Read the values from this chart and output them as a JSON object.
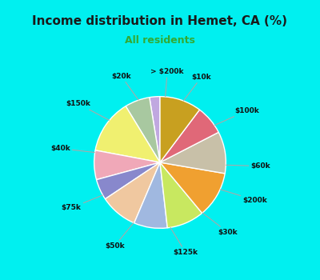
{
  "title": "Income distribution in Hemet, CA (%)",
  "subtitle": "All residents",
  "title_color": "#1a1a1a",
  "subtitle_color": "#33aa33",
  "bg_cyan": "#00f0f0",
  "bg_chart": "#e0f0e8",
  "labels": [
    "> $200k",
    "$10k",
    "$100k",
    "$60k",
    "$200k",
    "$30k",
    "$125k",
    "$50k",
    "$75k",
    "$40k",
    "$150k",
    "$20k"
  ],
  "values": [
    2.5,
    6,
    13,
    7,
    5,
    9,
    8,
    9,
    11,
    10,
    7,
    10
  ],
  "colors": [
    "#c0a8e0",
    "#a8c8a0",
    "#f0f070",
    "#f0a8b8",
    "#8888cc",
    "#f0c8a0",
    "#a0b8e0",
    "#c8e860",
    "#f0a030",
    "#c8c0a8",
    "#e06878",
    "#c8a020"
  ],
  "startangle": 90,
  "wedge_linewidth": 1.0,
  "wedge_edgecolor": "#ffffff"
}
